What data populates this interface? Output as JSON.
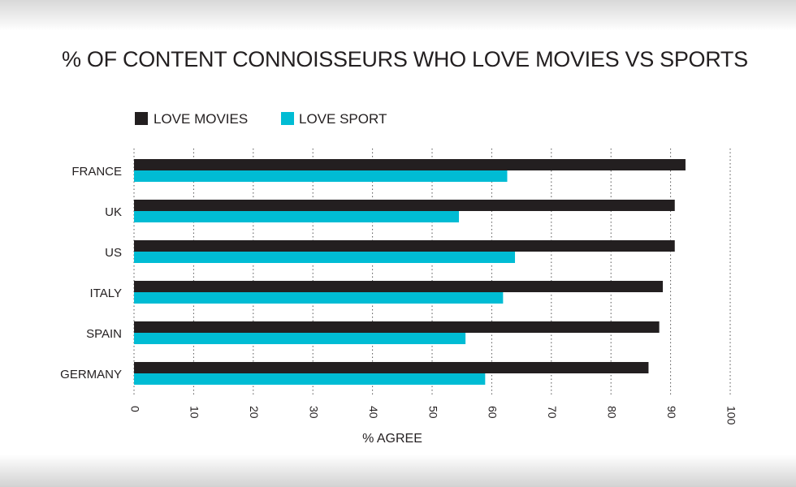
{
  "chart_data": {
    "type": "bar",
    "orientation": "horizontal",
    "title": "% OF CONTENT CONNOISSEURS WHO LOVE MOVIES VS SPORTS",
    "xlabel": "% AGREE",
    "ylabel": "",
    "categories": [
      "FRANCE",
      "UK",
      "US",
      "ITALY",
      "SPAIN",
      "GERMANY"
    ],
    "series": [
      {
        "name": "LOVE MOVIES",
        "color": "#231f20",
        "values": [
          92.5,
          90.7,
          90.7,
          88.7,
          88.1,
          86.3
        ]
      },
      {
        "name": "LOVE SPORT",
        "color": "#00bcd4",
        "values": [
          62.6,
          54.5,
          63.9,
          61.9,
          55.6,
          58.9
        ]
      }
    ],
    "xlim": [
      0,
      100
    ],
    "ticks": [
      "0",
      "10",
      "20",
      "30",
      "40",
      "50",
      "60",
      "70",
      "80",
      "90",
      "100"
    ],
    "grid": "vertical-dotted",
    "legend_position": "top-left"
  }
}
